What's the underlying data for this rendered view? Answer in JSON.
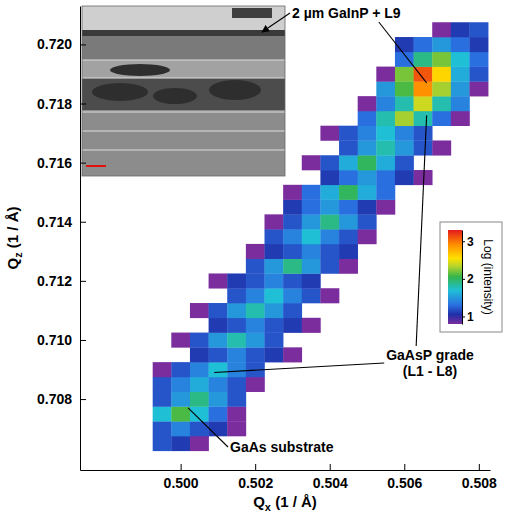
{
  "chart_data": {
    "type": "heatmap",
    "xlabel": "Qx (1 / Å)",
    "ylabel": "Qz (1 / Å)",
    "xlim": [
      0.4973,
      0.5083
    ],
    "ylim": [
      0.7056,
      0.7213
    ],
    "xticks": [
      {
        "value": 0.5,
        "label": "0.500"
      },
      0.502,
      0.504,
      0.506,
      0.508
    ],
    "yticks": [
      0.708,
      {
        "value": 0.71,
        "label": "0.710"
      },
      0.712,
      0.714,
      0.716,
      0.718,
      {
        "value": 0.72,
        "label": "0.720"
      }
    ],
    "x": [
      0.4995,
      0.5,
      0.5005,
      0.501,
      0.5015,
      0.502,
      0.5025,
      0.503,
      0.5035,
      0.504,
      0.5045,
      0.505,
      0.5055,
      0.506,
      0.5065,
      0.507,
      0.5075,
      0.508
    ],
    "y": [
      0.7065,
      0.707,
      0.7075,
      0.708,
      0.7085,
      0.709,
      0.7095,
      0.71,
      0.7105,
      0.711,
      0.7115,
      0.712,
      0.7125,
      0.713,
      0.7135,
      0.714,
      0.7145,
      0.715,
      0.7155,
      0.716,
      0.7165,
      0.717,
      0.7175,
      0.718,
      0.7185,
      0.719,
      0.7195,
      0.72,
      0.7205
    ],
    "z": [
      [
        1.2,
        1.1,
        0.8,
        null,
        null,
        null,
        null,
        null,
        null,
        null,
        null,
        null,
        null,
        null,
        null,
        null,
        null,
        null
      ],
      [
        1.2,
        1.4,
        1.2,
        1.1,
        0.8,
        null,
        null,
        null,
        null,
        null,
        null,
        null,
        null,
        null,
        null,
        null,
        null,
        null
      ],
      [
        1.7,
        2.1,
        1.7,
        1.3,
        0.8,
        null,
        null,
        null,
        null,
        null,
        null,
        null,
        null,
        null,
        null,
        null,
        null,
        null
      ],
      [
        1.2,
        1.5,
        1.9,
        1.5,
        1.2,
        null,
        null,
        null,
        null,
        null,
        null,
        null,
        null,
        null,
        null,
        null,
        null,
        null
      ],
      [
        1.2,
        1.4,
        1.6,
        1.4,
        1.2,
        0.8,
        null,
        null,
        null,
        null,
        null,
        null,
        null,
        null,
        null,
        null,
        null,
        null
      ],
      [
        0.8,
        1.2,
        1.4,
        1.7,
        1.4,
        1.2,
        null,
        null,
        null,
        null,
        null,
        null,
        null,
        null,
        null,
        null,
        null,
        null
      ],
      [
        null,
        null,
        1.1,
        1.2,
        1.4,
        1.2,
        1.1,
        0.8,
        null,
        null,
        null,
        null,
        null,
        null,
        null,
        null,
        null,
        null
      ],
      [
        null,
        0.8,
        1.2,
        1.5,
        1.8,
        1.5,
        1.2,
        null,
        null,
        null,
        null,
        null,
        null,
        null,
        null,
        null,
        null,
        null
      ],
      [
        null,
        null,
        null,
        1.1,
        1.2,
        1.4,
        1.2,
        1.1,
        0.8,
        null,
        null,
        null,
        null,
        null,
        null,
        null,
        null,
        null
      ],
      [
        null,
        null,
        0.8,
        1.2,
        1.5,
        1.8,
        1.5,
        1.2,
        null,
        null,
        null,
        null,
        null,
        null,
        null,
        null,
        null,
        null
      ],
      [
        null,
        null,
        null,
        null,
        1.2,
        1.4,
        1.7,
        1.4,
        1.2,
        0.8,
        null,
        null,
        null,
        null,
        null,
        null,
        null,
        null
      ],
      [
        null,
        null,
        null,
        0.8,
        1.1,
        1.2,
        1.4,
        1.2,
        1.1,
        null,
        null,
        null,
        null,
        null,
        null,
        null,
        null,
        null
      ],
      [
        null,
        null,
        null,
        null,
        null,
        1.2,
        1.5,
        1.9,
        1.5,
        1.2,
        0.8,
        null,
        null,
        null,
        null,
        null,
        null,
        null
      ],
      [
        null,
        null,
        null,
        null,
        null,
        0.8,
        1.1,
        1.2,
        1.4,
        1.2,
        1.1,
        null,
        null,
        null,
        null,
        null,
        null,
        null
      ],
      [
        null,
        null,
        null,
        null,
        null,
        null,
        1.2,
        1.4,
        1.7,
        1.4,
        1.2,
        0.8,
        null,
        null,
        null,
        null,
        null,
        null
      ],
      [
        null,
        null,
        null,
        null,
        null,
        null,
        0.8,
        1.2,
        1.5,
        1.9,
        1.5,
        1.2,
        null,
        null,
        null,
        null,
        null,
        null
      ],
      [
        null,
        null,
        null,
        null,
        null,
        null,
        null,
        1.1,
        1.3,
        1.5,
        1.3,
        1.1,
        0.8,
        null,
        null,
        null,
        null,
        null
      ],
      [
        null,
        null,
        null,
        null,
        null,
        null,
        null,
        0.8,
        1.3,
        1.6,
        2.0,
        1.6,
        1.3,
        null,
        null,
        null,
        null,
        null
      ],
      [
        null,
        null,
        null,
        null,
        null,
        null,
        null,
        null,
        null,
        1.1,
        1.3,
        1.5,
        1.3,
        1.1,
        0.8,
        null,
        null,
        null
      ],
      [
        null,
        null,
        null,
        null,
        null,
        null,
        null,
        null,
        0.8,
        1.2,
        1.6,
        2.0,
        1.6,
        1.2,
        null,
        null,
        null,
        null
      ],
      [
        null,
        null,
        null,
        null,
        null,
        null,
        null,
        null,
        null,
        null,
        1.2,
        1.5,
        1.8,
        1.5,
        1.2,
        0.8,
        null,
        null
      ],
      [
        null,
        null,
        null,
        null,
        null,
        null,
        null,
        null,
        null,
        0.8,
        1.2,
        1.4,
        1.7,
        1.4,
        1.2,
        null,
        null,
        null
      ],
      [
        null,
        null,
        null,
        null,
        null,
        null,
        null,
        null,
        null,
        null,
        null,
        1.3,
        1.8,
        2.3,
        1.8,
        1.3,
        0.8,
        null
      ],
      [
        null,
        null,
        null,
        null,
        null,
        null,
        null,
        null,
        null,
        null,
        null,
        0.8,
        1.4,
        1.8,
        2.4,
        1.8,
        1.4,
        null
      ],
      [
        null,
        null,
        null,
        null,
        null,
        null,
        null,
        null,
        null,
        null,
        null,
        null,
        1.5,
        2.1,
        2.9,
        2.3,
        1.5,
        0.8
      ],
      [
        null,
        null,
        null,
        null,
        null,
        null,
        null,
        null,
        null,
        null,
        null,
        null,
        0.8,
        2.2,
        3.1,
        2.6,
        1.6,
        1.2
      ],
      [
        null,
        null,
        null,
        null,
        null,
        null,
        null,
        null,
        null,
        null,
        null,
        null,
        null,
        1.3,
        1.9,
        2.2,
        1.7,
        1.3
      ],
      [
        null,
        null,
        null,
        null,
        null,
        null,
        null,
        null,
        null,
        null,
        null,
        null,
        null,
        1.1,
        1.3,
        1.5,
        1.3,
        1.1
      ],
      [
        null,
        null,
        null,
        null,
        null,
        null,
        null,
        null,
        null,
        null,
        null,
        null,
        null,
        null,
        null,
        0.8,
        1.1,
        1.2
      ]
    ],
    "colorbar": {
      "label": "Log (intensity)",
      "range": [
        0.8,
        3.3
      ],
      "ticks": [
        1,
        2,
        3
      ]
    },
    "annotations": [
      {
        "text": "2 µm GaInP + L9",
        "xy": [
          [
            0.5066,
            0.7187
          ]
        ]
      },
      {
        "text": [
          "GaAsP grade",
          "(L1 - L8)"
        ],
        "xy": [
          [
            0.5066,
            0.7176
          ],
          [
            0.5009,
            0.7089
          ]
        ]
      },
      {
        "text": "GaAs substrate",
        "xy": [
          [
            0.5002,
            0.7077
          ]
        ]
      }
    ]
  }
}
